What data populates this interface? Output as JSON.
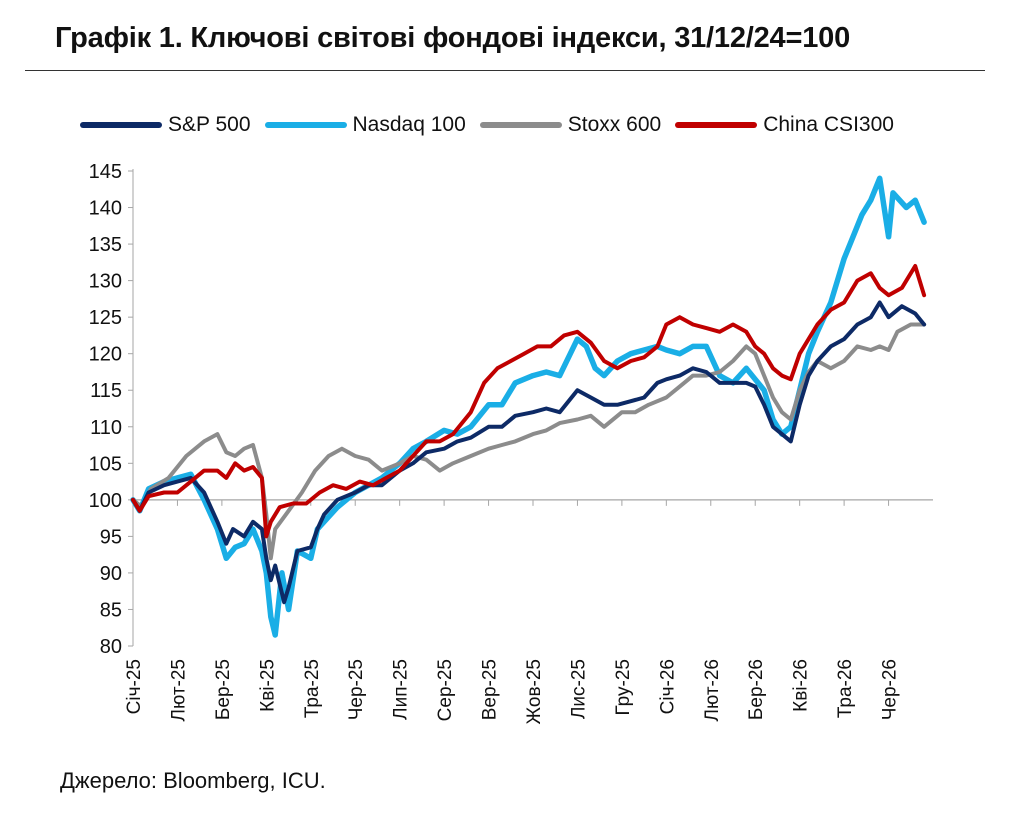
{
  "title": "Графік 1. Ключові світові фондові індекси, 31/12/24=100",
  "source": "Джерело: Bloomberg, ICU.",
  "chart_data": {
    "type": "line",
    "title": "Графік 1. Ключові світові фондові індекси, 31/12/24=100",
    "xlabel": "",
    "ylabel": "",
    "ylim": [
      80,
      145
    ],
    "yticks": [
      80,
      85,
      90,
      95,
      100,
      105,
      110,
      115,
      120,
      125,
      130,
      135,
      140,
      145
    ],
    "baseline": 100,
    "grid": false,
    "legend_position": "top",
    "x_tick_labels": [
      "Січ-25",
      "Лют-25",
      "Бер-25",
      "Кві-25",
      "Тра-25",
      "Чер-25",
      "Лип-25",
      "Сер-25",
      "Вер-25",
      "Жов-25",
      "Лис-25",
      "Гру-25",
      "Січ-26",
      "Лют-26",
      "Бер-26",
      "Кві-26",
      "Тра-26",
      "Чер-26"
    ],
    "x_range_months": [
      0,
      18
    ],
    "series": [
      {
        "name": "S&P 500",
        "color": "#0d2a66",
        "points": [
          [
            0,
            100
          ],
          [
            0.15,
            98.5
          ],
          [
            0.35,
            101
          ],
          [
            0.7,
            102
          ],
          [
            1.0,
            102.5
          ],
          [
            1.3,
            103
          ],
          [
            1.6,
            101
          ],
          [
            1.9,
            97
          ],
          [
            2.1,
            94
          ],
          [
            2.25,
            96
          ],
          [
            2.5,
            95
          ],
          [
            2.7,
            97
          ],
          [
            2.9,
            96
          ],
          [
            3.0,
            92
          ],
          [
            3.1,
            89
          ],
          [
            3.2,
            91
          ],
          [
            3.4,
            86
          ],
          [
            3.5,
            88
          ],
          [
            3.7,
            93
          ],
          [
            4.0,
            93.5
          ],
          [
            4.15,
            96
          ],
          [
            4.3,
            98
          ],
          [
            4.6,
            100
          ],
          [
            5.0,
            101
          ],
          [
            5.3,
            102
          ],
          [
            5.6,
            102
          ],
          [
            6.0,
            104
          ],
          [
            6.3,
            105
          ],
          [
            6.6,
            106.5
          ],
          [
            7.0,
            107
          ],
          [
            7.3,
            108
          ],
          [
            7.6,
            108.5
          ],
          [
            8.0,
            110
          ],
          [
            8.3,
            110
          ],
          [
            8.6,
            111.5
          ],
          [
            9.0,
            112
          ],
          [
            9.3,
            112.5
          ],
          [
            9.6,
            112
          ],
          [
            10.0,
            115
          ],
          [
            10.3,
            114
          ],
          [
            10.6,
            113
          ],
          [
            10.9,
            113
          ],
          [
            11.2,
            113.5
          ],
          [
            11.5,
            114
          ],
          [
            11.8,
            116
          ],
          [
            12.0,
            116.5
          ],
          [
            12.3,
            117
          ],
          [
            12.6,
            118
          ],
          [
            12.9,
            117.5
          ],
          [
            13.2,
            116
          ],
          [
            13.5,
            116
          ],
          [
            13.8,
            116
          ],
          [
            14.0,
            115.5
          ],
          [
            14.2,
            113
          ],
          [
            14.4,
            110
          ],
          [
            14.6,
            109
          ],
          [
            14.8,
            108
          ],
          [
            15.0,
            113
          ],
          [
            15.2,
            117
          ],
          [
            15.4,
            119
          ],
          [
            15.7,
            121
          ],
          [
            16.0,
            122
          ],
          [
            16.3,
            124
          ],
          [
            16.6,
            125
          ],
          [
            16.8,
            127
          ],
          [
            17.0,
            125
          ],
          [
            17.3,
            126.5
          ],
          [
            17.6,
            125.5
          ],
          [
            17.8,
            124
          ]
        ]
      },
      {
        "name": "Nasdaq 100",
        "color": "#1aaee6",
        "points": [
          [
            0,
            100
          ],
          [
            0.15,
            98.5
          ],
          [
            0.35,
            101.5
          ],
          [
            0.7,
            102.5
          ],
          [
            1.0,
            103
          ],
          [
            1.3,
            103.5
          ],
          [
            1.6,
            100
          ],
          [
            1.9,
            96
          ],
          [
            2.1,
            92
          ],
          [
            2.3,
            93.5
          ],
          [
            2.5,
            94
          ],
          [
            2.7,
            96
          ],
          [
            2.9,
            93
          ],
          [
            3.0,
            90
          ],
          [
            3.1,
            84
          ],
          [
            3.2,
            81.5
          ],
          [
            3.35,
            90
          ],
          [
            3.5,
            85
          ],
          [
            3.7,
            93
          ],
          [
            4.0,
            92
          ],
          [
            4.15,
            96
          ],
          [
            4.3,
            97
          ],
          [
            4.6,
            99
          ],
          [
            5.0,
            101
          ],
          [
            5.3,
            102
          ],
          [
            5.6,
            103
          ],
          [
            6.0,
            105
          ],
          [
            6.3,
            107
          ],
          [
            6.6,
            108
          ],
          [
            7.0,
            109.5
          ],
          [
            7.3,
            109
          ],
          [
            7.6,
            110
          ],
          [
            8.0,
            113
          ],
          [
            8.3,
            113
          ],
          [
            8.6,
            116
          ],
          [
            9.0,
            117
          ],
          [
            9.3,
            117.5
          ],
          [
            9.6,
            117
          ],
          [
            10.0,
            122
          ],
          [
            10.2,
            121
          ],
          [
            10.4,
            118
          ],
          [
            10.6,
            117
          ],
          [
            10.9,
            119
          ],
          [
            11.2,
            120
          ],
          [
            11.5,
            120.5
          ],
          [
            11.8,
            121
          ],
          [
            12.0,
            120.5
          ],
          [
            12.3,
            120
          ],
          [
            12.6,
            121
          ],
          [
            12.9,
            121
          ],
          [
            13.2,
            117
          ],
          [
            13.5,
            116
          ],
          [
            13.8,
            118
          ],
          [
            14.0,
            116.5
          ],
          [
            14.2,
            115
          ],
          [
            14.4,
            111
          ],
          [
            14.6,
            109
          ],
          [
            14.8,
            110
          ],
          [
            15.0,
            115
          ],
          [
            15.2,
            120
          ],
          [
            15.4,
            123
          ],
          [
            15.7,
            127
          ],
          [
            16.0,
            133
          ],
          [
            16.2,
            136
          ],
          [
            16.4,
            139
          ],
          [
            16.6,
            141
          ],
          [
            16.8,
            144
          ],
          [
            17.0,
            136
          ],
          [
            17.1,
            142
          ],
          [
            17.4,
            140
          ],
          [
            17.6,
            141
          ],
          [
            17.8,
            138
          ]
        ]
      },
      {
        "name": "Stoxx 600",
        "color": "#8c8c8c",
        "points": [
          [
            0,
            100
          ],
          [
            0.2,
            99
          ],
          [
            0.4,
            101.5
          ],
          [
            0.8,
            103
          ],
          [
            1.2,
            106
          ],
          [
            1.6,
            108
          ],
          [
            1.9,
            109
          ],
          [
            2.1,
            106.5
          ],
          [
            2.3,
            106
          ],
          [
            2.5,
            107
          ],
          [
            2.7,
            107.5
          ],
          [
            2.9,
            103
          ],
          [
            3.0,
            98
          ],
          [
            3.1,
            92
          ],
          [
            3.2,
            96
          ],
          [
            3.5,
            98.5
          ],
          [
            3.8,
            101
          ],
          [
            4.1,
            104
          ],
          [
            4.4,
            106
          ],
          [
            4.7,
            107
          ],
          [
            5.0,
            106
          ],
          [
            5.3,
            105.5
          ],
          [
            5.6,
            104
          ],
          [
            6.0,
            105
          ],
          [
            6.3,
            106
          ],
          [
            6.6,
            105.5
          ],
          [
            6.9,
            104
          ],
          [
            7.2,
            105
          ],
          [
            7.6,
            106
          ],
          [
            8.0,
            107
          ],
          [
            8.3,
            107.5
          ],
          [
            8.6,
            108
          ],
          [
            9.0,
            109
          ],
          [
            9.3,
            109.5
          ],
          [
            9.6,
            110.5
          ],
          [
            10.0,
            111
          ],
          [
            10.3,
            111.5
          ],
          [
            10.6,
            110
          ],
          [
            11.0,
            112
          ],
          [
            11.3,
            112
          ],
          [
            11.6,
            113
          ],
          [
            12.0,
            114
          ],
          [
            12.3,
            115.5
          ],
          [
            12.6,
            117
          ],
          [
            12.9,
            117
          ],
          [
            13.2,
            117.5
          ],
          [
            13.5,
            119
          ],
          [
            13.8,
            121
          ],
          [
            14.0,
            120
          ],
          [
            14.2,
            117
          ],
          [
            14.4,
            114
          ],
          [
            14.6,
            112
          ],
          [
            14.8,
            111
          ],
          [
            15.0,
            115
          ],
          [
            15.2,
            117.5
          ],
          [
            15.4,
            119
          ],
          [
            15.7,
            118
          ],
          [
            16.0,
            119
          ],
          [
            16.3,
            121
          ],
          [
            16.6,
            120.5
          ],
          [
            16.8,
            121
          ],
          [
            17.0,
            120.5
          ],
          [
            17.2,
            123
          ],
          [
            17.5,
            124
          ],
          [
            17.8,
            124
          ]
        ]
      },
      {
        "name": "China CSI300",
        "color": "#c00000",
        "points": [
          [
            0,
            100
          ],
          [
            0.15,
            98.5
          ],
          [
            0.35,
            100.5
          ],
          [
            0.7,
            101
          ],
          [
            1.0,
            101
          ],
          [
            1.3,
            102.5
          ],
          [
            1.6,
            104
          ],
          [
            1.9,
            104
          ],
          [
            2.1,
            103
          ],
          [
            2.3,
            105
          ],
          [
            2.5,
            104
          ],
          [
            2.7,
            104.5
          ],
          [
            2.9,
            103
          ],
          [
            3.0,
            95
          ],
          [
            3.1,
            97
          ],
          [
            3.3,
            99
          ],
          [
            3.6,
            99.5
          ],
          [
            3.9,
            99.5
          ],
          [
            4.2,
            101
          ],
          [
            4.5,
            102
          ],
          [
            4.8,
            101.5
          ],
          [
            5.1,
            102.5
          ],
          [
            5.4,
            102
          ],
          [
            5.7,
            103
          ],
          [
            6.0,
            104
          ],
          [
            6.3,
            106
          ],
          [
            6.6,
            108
          ],
          [
            6.9,
            108
          ],
          [
            7.2,
            109
          ],
          [
            7.6,
            112
          ],
          [
            7.9,
            116
          ],
          [
            8.2,
            118
          ],
          [
            8.5,
            119
          ],
          [
            8.8,
            120
          ],
          [
            9.1,
            121
          ],
          [
            9.4,
            121
          ],
          [
            9.7,
            122.5
          ],
          [
            10.0,
            123
          ],
          [
            10.3,
            121.5
          ],
          [
            10.6,
            119
          ],
          [
            10.9,
            118
          ],
          [
            11.2,
            119
          ],
          [
            11.5,
            119.5
          ],
          [
            11.8,
            121
          ],
          [
            12.0,
            124
          ],
          [
            12.3,
            125
          ],
          [
            12.6,
            124
          ],
          [
            12.9,
            123.5
          ],
          [
            13.2,
            123
          ],
          [
            13.5,
            124
          ],
          [
            13.8,
            123
          ],
          [
            14.0,
            121
          ],
          [
            14.2,
            120
          ],
          [
            14.4,
            118
          ],
          [
            14.6,
            117
          ],
          [
            14.8,
            116.5
          ],
          [
            15.0,
            120
          ],
          [
            15.2,
            122
          ],
          [
            15.4,
            124
          ],
          [
            15.7,
            126
          ],
          [
            16.0,
            127
          ],
          [
            16.3,
            130
          ],
          [
            16.6,
            131
          ],
          [
            16.8,
            129
          ],
          [
            17.0,
            128
          ],
          [
            17.3,
            129
          ],
          [
            17.6,
            132
          ],
          [
            17.8,
            128
          ]
        ]
      }
    ]
  }
}
